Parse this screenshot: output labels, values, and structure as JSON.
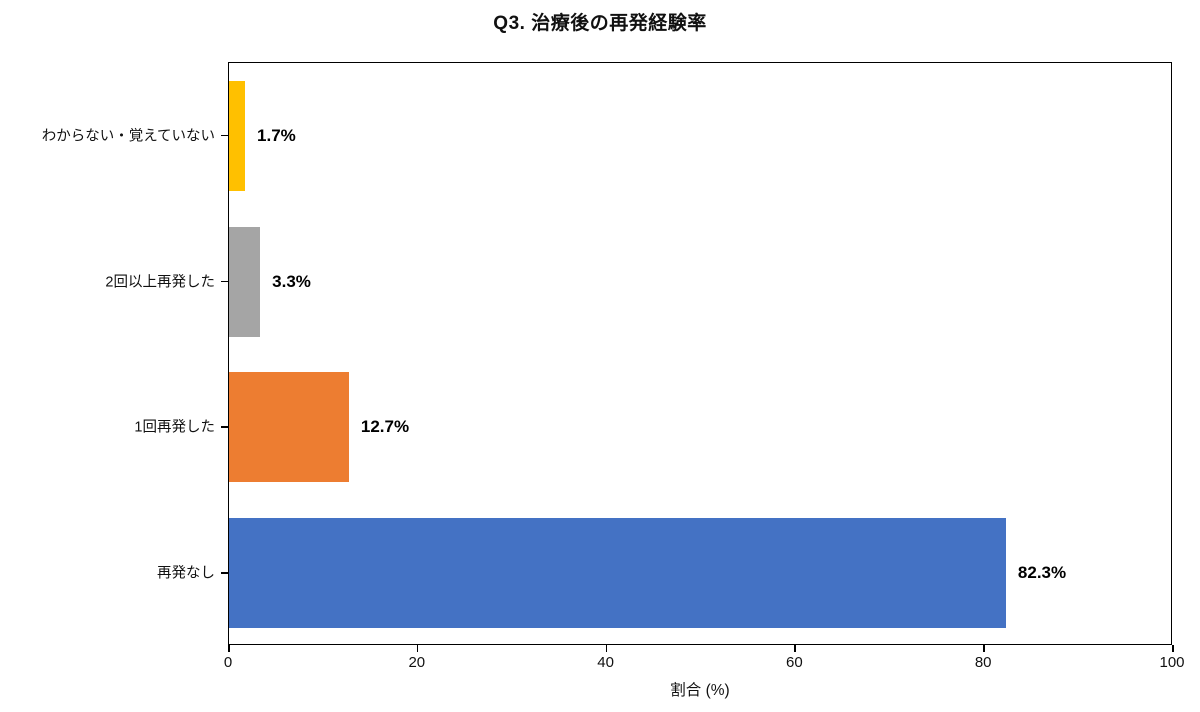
{
  "chart_data": {
    "type": "bar",
    "orientation": "horizontal",
    "title": "Q3. 治療後の再発経験率",
    "xlabel": "割合 (%)",
    "ylabel": "",
    "categories": [
      "わからない・覚えていない",
      "2回以上再発した",
      "1回再発した",
      "再発なし"
    ],
    "values": [
      1.7,
      3.3,
      12.7,
      82.3
    ],
    "value_labels": [
      "1.7%",
      "3.3%",
      "12.7%",
      "82.3%"
    ],
    "colors": [
      "#FFC000",
      "#A5A5A5",
      "#ED7D31",
      "#4472C4"
    ],
    "xlim": [
      0,
      100
    ],
    "xticks": [
      "0",
      "20",
      "40",
      "60",
      "80",
      "100"
    ],
    "grid": false,
    "legend": false,
    "plot_border_color": "#000000",
    "value_label_color": "#000000",
    "background_color": "#ffffff"
  }
}
